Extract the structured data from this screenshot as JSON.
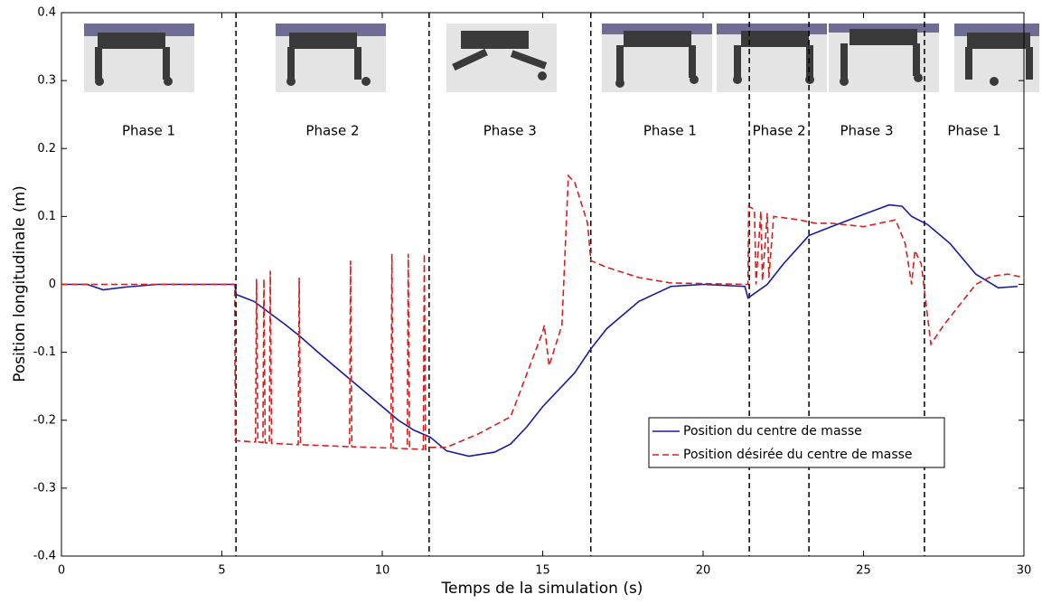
{
  "chart_data": {
    "type": "line",
    "x_label": "Temps de la simulation (s)",
    "y_label": "Position longitudinale (m)",
    "xlim": [
      0,
      30
    ],
    "ylim": [
      -0.4,
      0.4
    ],
    "xticks": [
      0,
      5,
      10,
      15,
      20,
      25,
      30
    ],
    "yticks": [
      -0.4,
      -0.3,
      -0.2,
      -0.1,
      0,
      0.1,
      0.2,
      0.3,
      0.4
    ],
    "phase_boundaries": [
      5.44,
      11.46,
      16.5,
      21.44,
      23.3,
      26.9
    ],
    "phase_labels": [
      "Phase 1",
      "Phase 2",
      "Phase 3",
      "Phase 1",
      "Phase 2",
      "Phase 3",
      "Phase 1"
    ],
    "legend": "lower right",
    "series": [
      {
        "name": "Position du centre de masse",
        "color": "#1a1aa0",
        "dash": "solid",
        "x": [
          0,
          0.8,
          1.3,
          2,
          3,
          5.4,
          5.45,
          6,
          7,
          7.4,
          8,
          9,
          10,
          10.5,
          11,
          11.5,
          12,
          12.7,
          13.5,
          14,
          14.5,
          15,
          16,
          16.5,
          17,
          18,
          19,
          20,
          21.3,
          21.4,
          22,
          22.5,
          23.3,
          24,
          25,
          25.8,
          26.2,
          26.5,
          27,
          27.7,
          28.5,
          29.2,
          29.8
        ],
        "values": [
          0,
          0,
          -0.008,
          -0.004,
          0,
          0,
          -0.015,
          -0.025,
          -0.06,
          -0.075,
          -0.1,
          -0.14,
          -0.18,
          -0.2,
          -0.215,
          -0.225,
          -0.245,
          -0.253,
          -0.247,
          -0.235,
          -0.21,
          -0.18,
          -0.13,
          -0.095,
          -0.065,
          -0.025,
          -0.003,
          0,
          -0.003,
          -0.02,
          0,
          0.03,
          0.072,
          0.085,
          0.103,
          0.117,
          0.115,
          0.1,
          0.088,
          0.06,
          0.015,
          -0.005,
          -0.003
        ]
      },
      {
        "name": "Position désirée du centre de masse",
        "color": "#d42020",
        "dash": "dashed",
        "x": [
          0,
          3,
          5.4,
          5.42,
          6.05,
          6.08,
          6.12,
          6.28,
          6.31,
          6.35,
          6.48,
          6.51,
          6.55,
          7.38,
          7.41,
          7.45,
          8.98,
          9.01,
          9.05,
          10.27,
          10.3,
          10.34,
          10.78,
          10.81,
          10.85,
          11.28,
          11.31,
          11.35,
          11.5,
          12,
          13,
          14,
          15,
          15.05,
          15.2,
          15.6,
          15.8,
          16,
          16.4,
          16.5,
          17,
          18,
          19,
          21.4,
          21.42,
          21.6,
          21.65,
          21.8,
          21.85,
          22,
          22.05,
          22.2,
          23,
          23.5,
          24,
          25,
          26,
          26.3,
          26.5,
          26.6,
          26.8,
          27.1,
          27.5,
          28,
          28.5,
          29,
          29.5,
          30
        ],
        "values": [
          0,
          0,
          0,
          -0.23,
          -0.232,
          0.008,
          -0.232,
          -0.233,
          0.008,
          -0.233,
          -0.234,
          0.02,
          -0.234,
          -0.236,
          0.01,
          -0.236,
          -0.239,
          0.035,
          -0.239,
          -0.241,
          0.045,
          -0.241,
          -0.242,
          0.045,
          -0.242,
          -0.243,
          0.045,
          -0.243,
          -0.24,
          -0.24,
          -0.22,
          -0.195,
          -0.07,
          -0.06,
          -0.12,
          -0.06,
          0.16,
          0.15,
          0.09,
          0.035,
          0.025,
          0.01,
          0.002,
          0,
          0.115,
          0.11,
          0.0,
          0.108,
          0.005,
          0.105,
          0.01,
          0.1,
          0.095,
          0.09,
          0.09,
          0.085,
          0.095,
          0.06,
          0,
          0.05,
          0.03,
          -0.088,
          -0.06,
          -0.03,
          0,
          0.012,
          0.015,
          0.01
        ]
      }
    ]
  }
}
